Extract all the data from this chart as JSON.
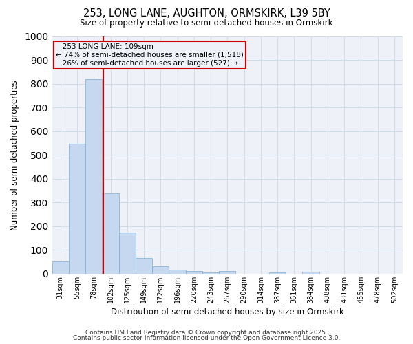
{
  "title1": "253, LONG LANE, AUGHTON, ORMSKIRK, L39 5BY",
  "title2": "Size of property relative to semi-detached houses in Ormskirk",
  "xlabel": "Distribution of semi-detached houses by size in Ormskirk",
  "ylabel": "Number of semi-detached properties",
  "categories": [
    "31sqm",
    "55sqm",
    "78sqm",
    "102sqm",
    "125sqm",
    "149sqm",
    "172sqm",
    "196sqm",
    "220sqm",
    "243sqm",
    "267sqm",
    "290sqm",
    "314sqm",
    "337sqm",
    "361sqm",
    "384sqm",
    "408sqm",
    "431sqm",
    "455sqm",
    "478sqm",
    "502sqm"
  ],
  "values": [
    53,
    548,
    820,
    340,
    175,
    65,
    32,
    17,
    10,
    5,
    10,
    0,
    0,
    5,
    0,
    7,
    0,
    0,
    0,
    0,
    0
  ],
  "bar_color": "#c5d8f0",
  "bar_edge_color": "#7bafd4",
  "grid_color": "#d0dce8",
  "property_label": "253 LONG LANE: 109sqm",
  "pct_smaller": 74,
  "count_smaller": 1518,
  "pct_larger": 26,
  "count_larger": 527,
  "vline_color": "#cc0000",
  "vline_x_index": 2.57,
  "annotation_box_color": "#cc0000",
  "ylim": [
    0,
    1000
  ],
  "yticks": [
    0,
    100,
    200,
    300,
    400,
    500,
    600,
    700,
    800,
    900,
    1000
  ],
  "footer1": "Contains HM Land Registry data © Crown copyright and database right 2025.",
  "footer2": "Contains public sector information licensed under the Open Government Licence 3.0.",
  "background_color": "#ffffff",
  "plot_bg_color": "#eef2f8"
}
